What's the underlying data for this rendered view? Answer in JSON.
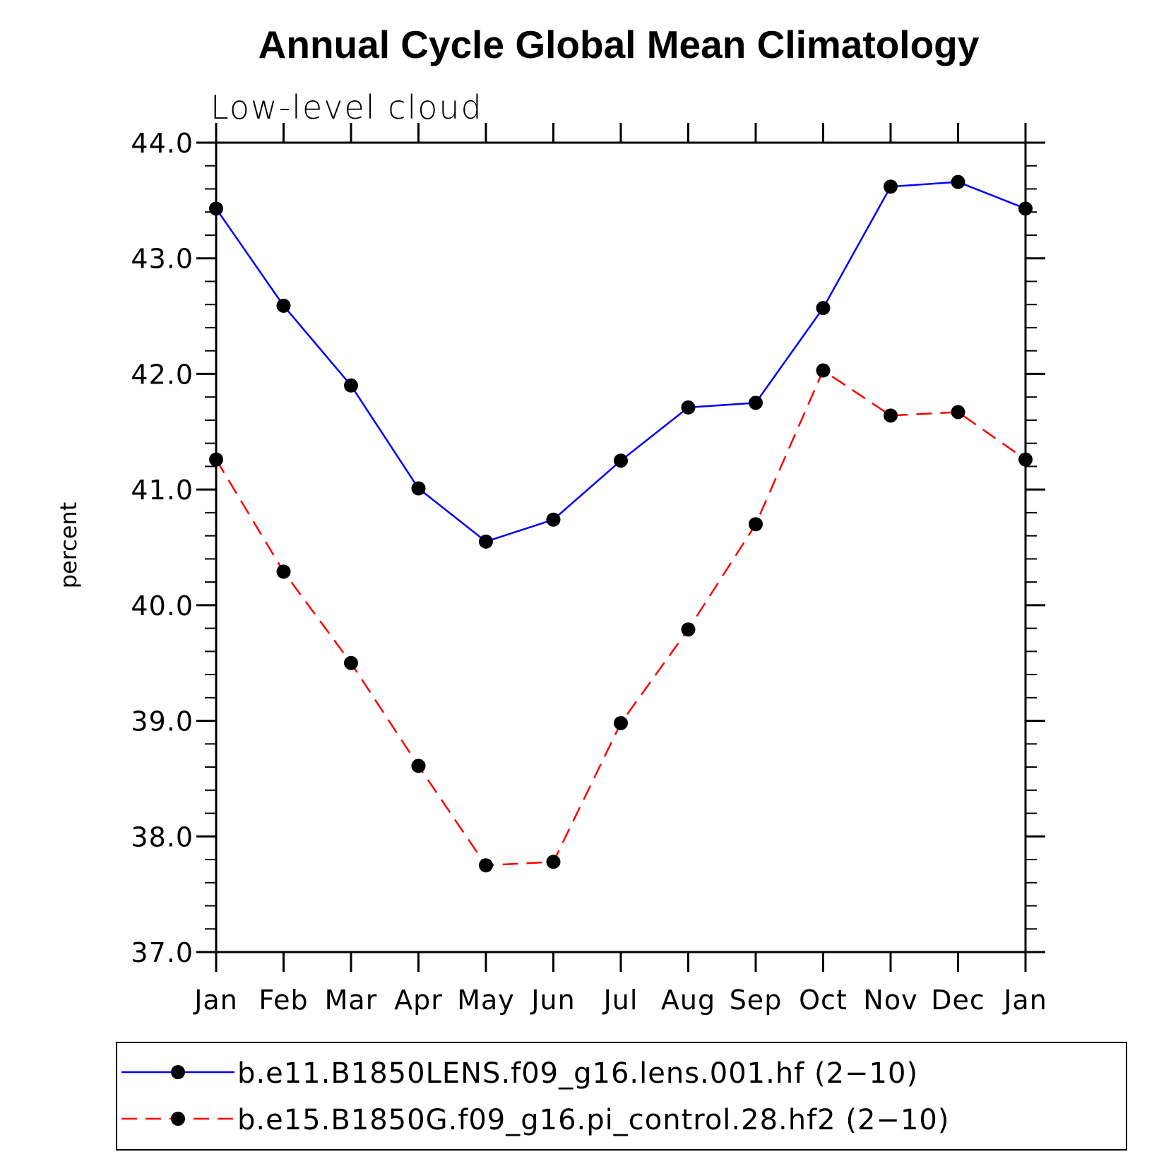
{
  "chart_data": {
    "type": "line",
    "title": "Annual Cycle Global Mean Climatology",
    "subtitle": "Low-level cloud",
    "xlabel": "",
    "ylabel": "percent",
    "categories": [
      "Jan",
      "Feb",
      "Mar",
      "Apr",
      "May",
      "Jun",
      "Jul",
      "Aug",
      "Sep",
      "Oct",
      "Nov",
      "Dec",
      "Jan"
    ],
    "ylim": [
      37.0,
      44.0
    ],
    "yticks": [
      "37.0",
      "38.0",
      "39.0",
      "40.0",
      "41.0",
      "42.0",
      "43.0",
      "44.0"
    ],
    "grid": false,
    "legend_position": "bottom",
    "series": [
      {
        "name": "b.e11.B1850LENS.f09_g16.lens.001.hf (2−10)",
        "color": "#0000ff",
        "dash": "solid",
        "values": [
          43.43,
          42.59,
          41.9,
          41.01,
          40.55,
          40.74,
          41.25,
          41.71,
          41.75,
          42.57,
          43.62,
          43.66,
          43.43
        ]
      },
      {
        "name": "b.e15.B1850G.f09_g16.pi_control.28.hf2 (2−10)",
        "color": "#ff0000",
        "dash": "dashed",
        "values": [
          41.26,
          40.29,
          39.5,
          38.61,
          37.75,
          37.78,
          38.98,
          39.79,
          40.7,
          42.03,
          41.64,
          41.67,
          41.26
        ]
      }
    ]
  }
}
